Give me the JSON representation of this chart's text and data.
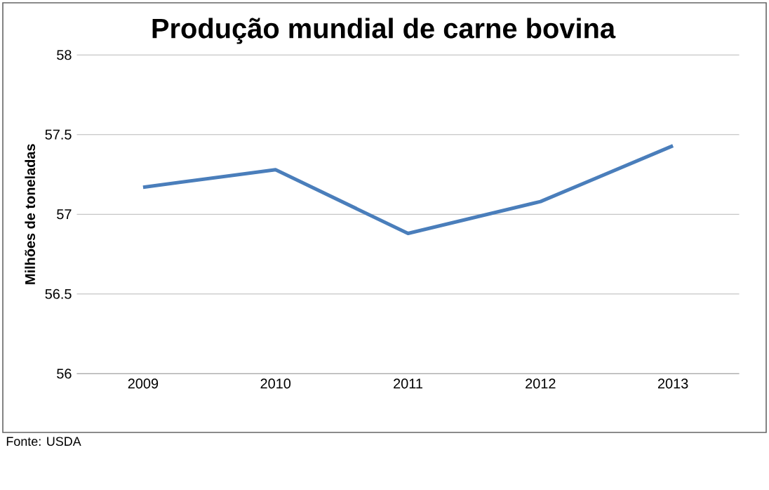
{
  "chart_data": {
    "type": "line",
    "title": "Produção mundial de carne bovina",
    "ylabel": "Milhões de toneladas",
    "categories": [
      "2009",
      "2010",
      "2011",
      "2012",
      "2013"
    ],
    "series": [
      {
        "color": "#4a7ebb",
        "values": [
          57.17,
          57.28,
          56.88,
          57.08,
          57.43
        ]
      }
    ],
    "ylim": [
      56,
      58
    ],
    "yticks": [
      56,
      56.5,
      57,
      57.5,
      58
    ],
    "grid": "y",
    "marker": "none",
    "line_style": "solid",
    "annotations": [
      "Fonte: USDA"
    ]
  }
}
